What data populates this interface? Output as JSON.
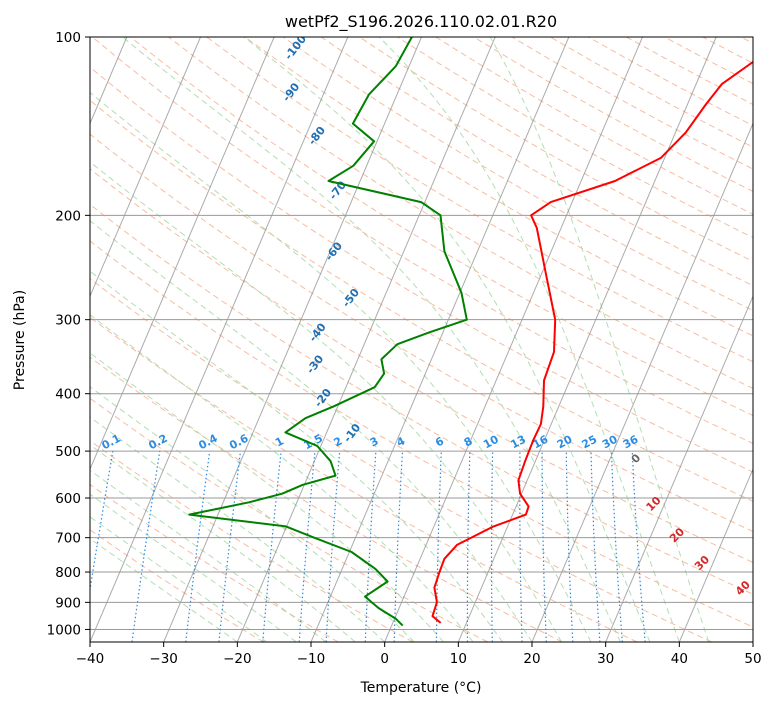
{
  "chart_data": {
    "type": "line",
    "subtype": "skew-t log-p",
    "title": "wetPf2_S196.2026.110.02.01.R20",
    "xlabel": "Temperature (°C)",
    "ylabel": "Pressure (hPa)",
    "xlim": [
      -40,
      50
    ],
    "ylim": [
      1050,
      100
    ],
    "y_scale": "log",
    "grid": true,
    "x_ticks": [
      "−40",
      "−30",
      "−20",
      "−10",
      "0",
      "10",
      "20",
      "30",
      "40",
      "50"
    ],
    "x_tick_values": [
      -40,
      -30,
      -20,
      -10,
      0,
      10,
      20,
      30,
      40,
      50
    ],
    "y_ticks": [
      "100",
      "200",
      "300",
      "400",
      "500",
      "600",
      "700",
      "800",
      "900",
      "1000"
    ],
    "y_tick_values": [
      100,
      200,
      300,
      400,
      500,
      600,
      700,
      800,
      900,
      1000
    ],
    "colors": {
      "temperature": "#ff0000",
      "dewpoint": "#008000",
      "dry_adiabats": "#f4a582",
      "moist_adiabats": "#a6d8a6",
      "mixing_ratio": "#2b8ce3",
      "isotherms": "#888888",
      "dry_label": "#d62728",
      "moist_label": "#1f6fb4"
    },
    "series": [
      {
        "key": "temperature",
        "points": [
          [
            6.5,
            975
          ],
          [
            5,
            950
          ],
          [
            4.8,
            900
          ],
          [
            3.6,
            850
          ],
          [
            3.4,
            800
          ],
          [
            3.3,
            760
          ],
          [
            4.2,
            720
          ],
          [
            8.1,
            670
          ],
          [
            11.8,
            640
          ],
          [
            11.7,
            620
          ],
          [
            9.8,
            590
          ],
          [
            8.8,
            560
          ],
          [
            8.6,
            520
          ],
          [
            8.5,
            480
          ],
          [
            8.6,
            450
          ],
          [
            7.9,
            420
          ],
          [
            6.5,
            380
          ],
          [
            6.2,
            340
          ],
          [
            4.5,
            300
          ],
          [
            0.5,
            250
          ],
          [
            -3.3,
            210
          ],
          [
            -4.8,
            200
          ],
          [
            -2.9,
            190
          ],
          [
            4.6,
            175
          ],
          [
            9.5,
            160
          ],
          [
            11.4,
            145
          ],
          [
            12.5,
            130
          ],
          [
            13.5,
            120
          ],
          [
            16.5,
            110
          ],
          [
            19.7,
            100
          ]
        ]
      },
      {
        "key": "dewpoint",
        "points": [
          [
            1.5,
            985
          ],
          [
            0.2,
            960
          ],
          [
            -2.8,
            920
          ],
          [
            -5.3,
            880
          ],
          [
            -3.1,
            830
          ],
          [
            -5.5,
            790
          ],
          [
            -9.7,
            740
          ],
          [
            -15.6,
            700
          ],
          [
            -20.1,
            670
          ],
          [
            -33.9,
            640
          ],
          [
            -26.5,
            610
          ],
          [
            -22.5,
            590
          ],
          [
            -20.2,
            570
          ],
          [
            -16.3,
            550
          ],
          [
            -17.8,
            520
          ],
          [
            -20.5,
            490
          ],
          [
            -25.6,
            465
          ],
          [
            -23.7,
            440
          ],
          [
            -20.5,
            420
          ],
          [
            -16.1,
            390
          ],
          [
            -15.6,
            370
          ],
          [
            -16.8,
            350
          ],
          [
            -15.5,
            330
          ],
          [
            -11.8,
            315
          ],
          [
            -7.5,
            300
          ],
          [
            -9.8,
            270
          ],
          [
            -14.5,
            230
          ],
          [
            -17.1,
            200
          ],
          [
            -20.5,
            190
          ],
          [
            -34.3,
            175
          ],
          [
            -31.8,
            165
          ],
          [
            -30.4,
            150
          ],
          [
            -34.3,
            140
          ],
          [
            -33.8,
            125
          ],
          [
            -31.8,
            112
          ],
          [
            -31.3,
            100
          ]
        ]
      }
    ],
    "dry_adiabat_labels": [
      "0",
      "10",
      "20",
      "30",
      "40"
    ],
    "moist_adiabat_labels": [
      "-100",
      "-90",
      "-80",
      "-70",
      "-60",
      "-50",
      "-40",
      "-30",
      "-20",
      "-10"
    ],
    "mixing_ratio_labels": [
      "0.1",
      "0.2",
      "0.4",
      "0.6",
      "1",
      "1.5",
      "2",
      "3",
      "4",
      "6",
      "8",
      "10",
      "13",
      "16",
      "20",
      "25",
      "30",
      "36"
    ],
    "mixing_ratio_values": [
      0.1,
      0.2,
      0.4,
      0.6,
      1,
      1.5,
      2,
      3,
      4,
      6,
      8,
      10,
      13,
      16,
      20,
      25,
      30,
      36
    ]
  }
}
